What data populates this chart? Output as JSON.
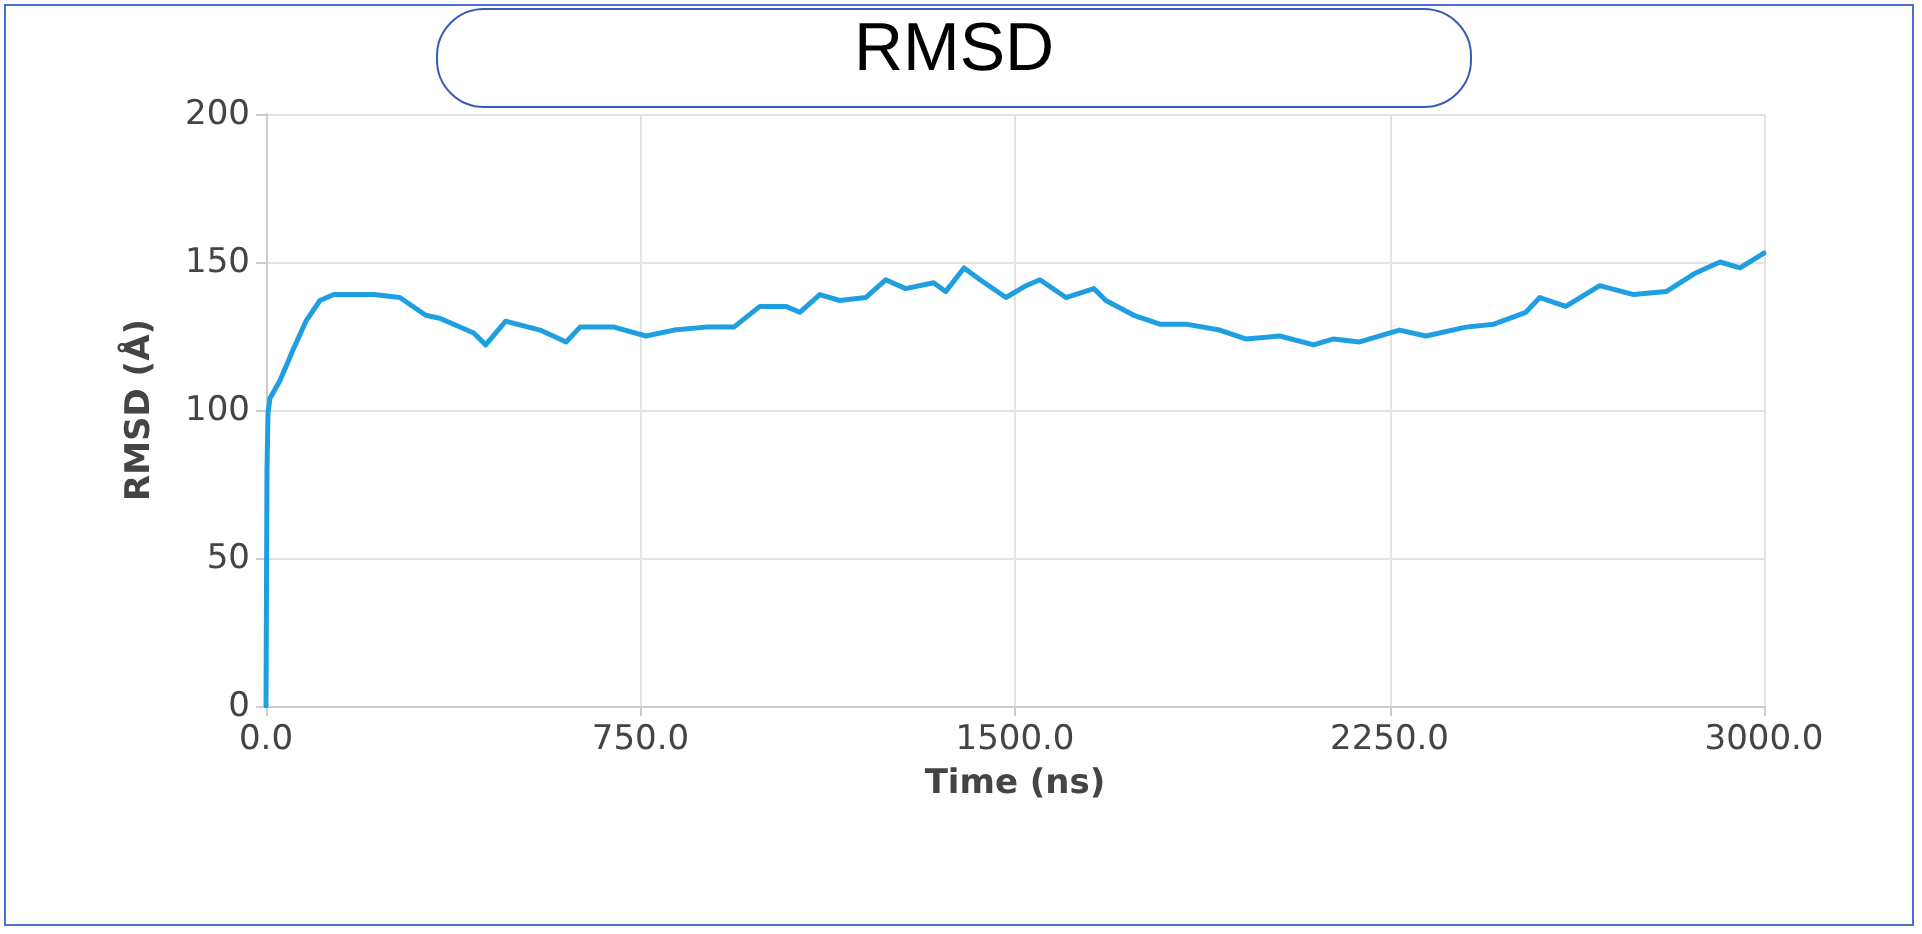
{
  "chart_data": {
    "type": "line",
    "title": "RMSD",
    "xlabel": "Time (ns)",
    "ylabel": "RMSD (Å)",
    "xlim": [
      0,
      3000
    ],
    "ylim": [
      0,
      200
    ],
    "xticks": [
      {
        "value": 0,
        "label": "0.0"
      },
      {
        "value": 750,
        "label": "750.0"
      },
      {
        "value": 1500,
        "label": "1500.0"
      },
      {
        "value": 2250,
        "label": "2250.0"
      },
      {
        "value": 3000,
        "label": "3000.0"
      }
    ],
    "yticks": [
      0,
      50,
      100,
      150,
      200
    ],
    "grid": true,
    "marker": "none",
    "line_style": "solid",
    "series": [
      {
        "color": "#1f9fe0",
        "x": [
          0,
          2,
          4,
          8,
          28,
          56,
          80,
          108,
          136,
          216,
          268,
          320,
          348,
          416,
          440,
          480,
          549,
          601,
          629,
          697,
          761,
          817,
          881,
          937,
          989,
          1041,
          1069,
          1109,
          1149,
          1201,
          1241,
          1281,
          1337,
          1361,
          1398,
          1430,
          1482,
          1522,
          1550,
          1602,
          1658,
          1682,
          1738,
          1790,
          1842,
          1910,
          1962,
          2030,
          2098,
          2138,
          2190,
          2270,
          2323,
          2403,
          2459,
          2523,
          2551,
          2603,
          2671,
          2739,
          2804,
          2860,
          2912,
          2952,
          3000
        ],
        "values": [
          0,
          80,
          99,
          104,
          110,
          121,
          130,
          137,
          139,
          139,
          138,
          132,
          131,
          126,
          122,
          130,
          127,
          123,
          128,
          128,
          125,
          127,
          128,
          128,
          135,
          135,
          133,
          139,
          137,
          138,
          144,
          141,
          143,
          140,
          148,
          144,
          138,
          142,
          144,
          138,
          141,
          137,
          132,
          129,
          129,
          127,
          124,
          125,
          122,
          124,
          123,
          127,
          125,
          128,
          129,
          133,
          138,
          135,
          142,
          139,
          140,
          146,
          150,
          148,
          153
        ]
      }
    ]
  }
}
